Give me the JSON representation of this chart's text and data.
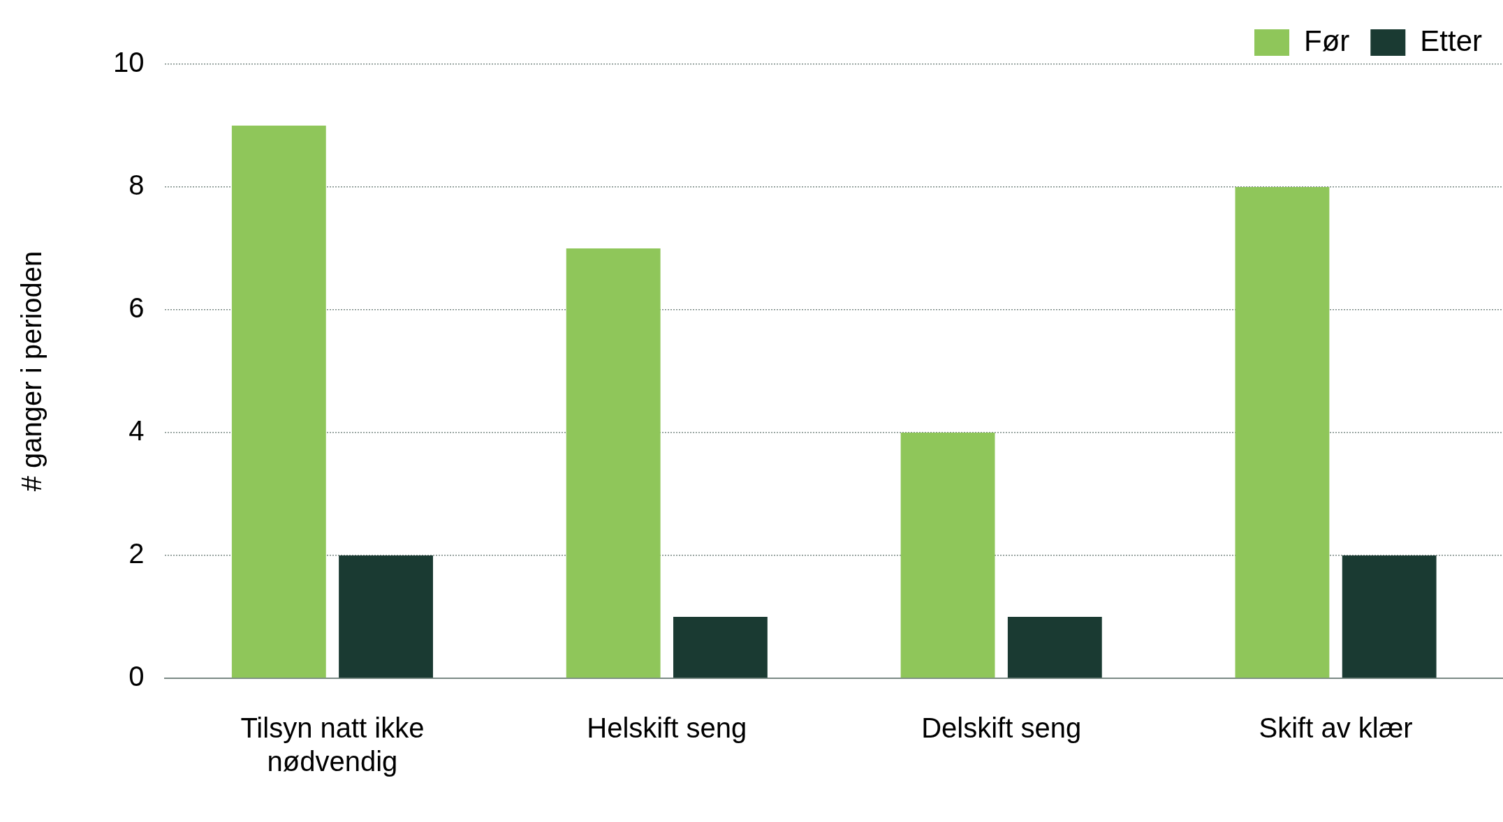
{
  "chart_data": {
    "type": "bar",
    "ylabel": "# ganger i perioden",
    "categories": [
      "Tilsyn natt ikke nødvendig",
      "Helskift seng",
      "Delskift seng",
      "Skift av klær"
    ],
    "series": [
      {
        "name": "Før",
        "color": "#8fc65a",
        "values": [
          9,
          7,
          4,
          8
        ]
      },
      {
        "name": "Etter",
        "color": "#1a3a32",
        "values": [
          2,
          1,
          1,
          2
        ]
      }
    ],
    "ylim": [
      0,
      10
    ],
    "yticks": [
      0,
      2,
      4,
      6,
      8,
      10
    ],
    "grid": "y",
    "legend": "top right"
  }
}
